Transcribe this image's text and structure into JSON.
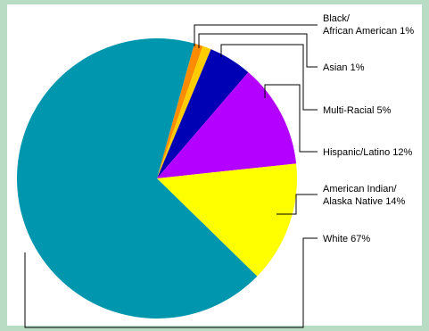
{
  "chart_data": {
    "type": "pie",
    "title": "",
    "slices": [
      {
        "name": "White",
        "label": "White 67%",
        "value": 67,
        "color": "#0097ae"
      },
      {
        "name": "Black/ African American",
        "label": "Black/\nAfrican American 1%",
        "value": 1,
        "color": "#ff8c00"
      },
      {
        "name": "Asian",
        "label": "Asian 1%",
        "value": 1,
        "color": "#ffcc00"
      },
      {
        "name": "Multi-Racial",
        "label": "Multi-Racial 5%",
        "value": 5,
        "color": "#0000b4"
      },
      {
        "name": "Hispanic/Latino",
        "label": "Hispanic/Latino 12%",
        "value": 12,
        "color": "#b400ff"
      },
      {
        "name": "American Indian/ Alaska Native",
        "label": "American Indian/\nAlaska Native 14%",
        "value": 14,
        "color": "#ffff00"
      }
    ],
    "legend": "leader-line labels to the right",
    "background_color": "#b9dcc4"
  }
}
